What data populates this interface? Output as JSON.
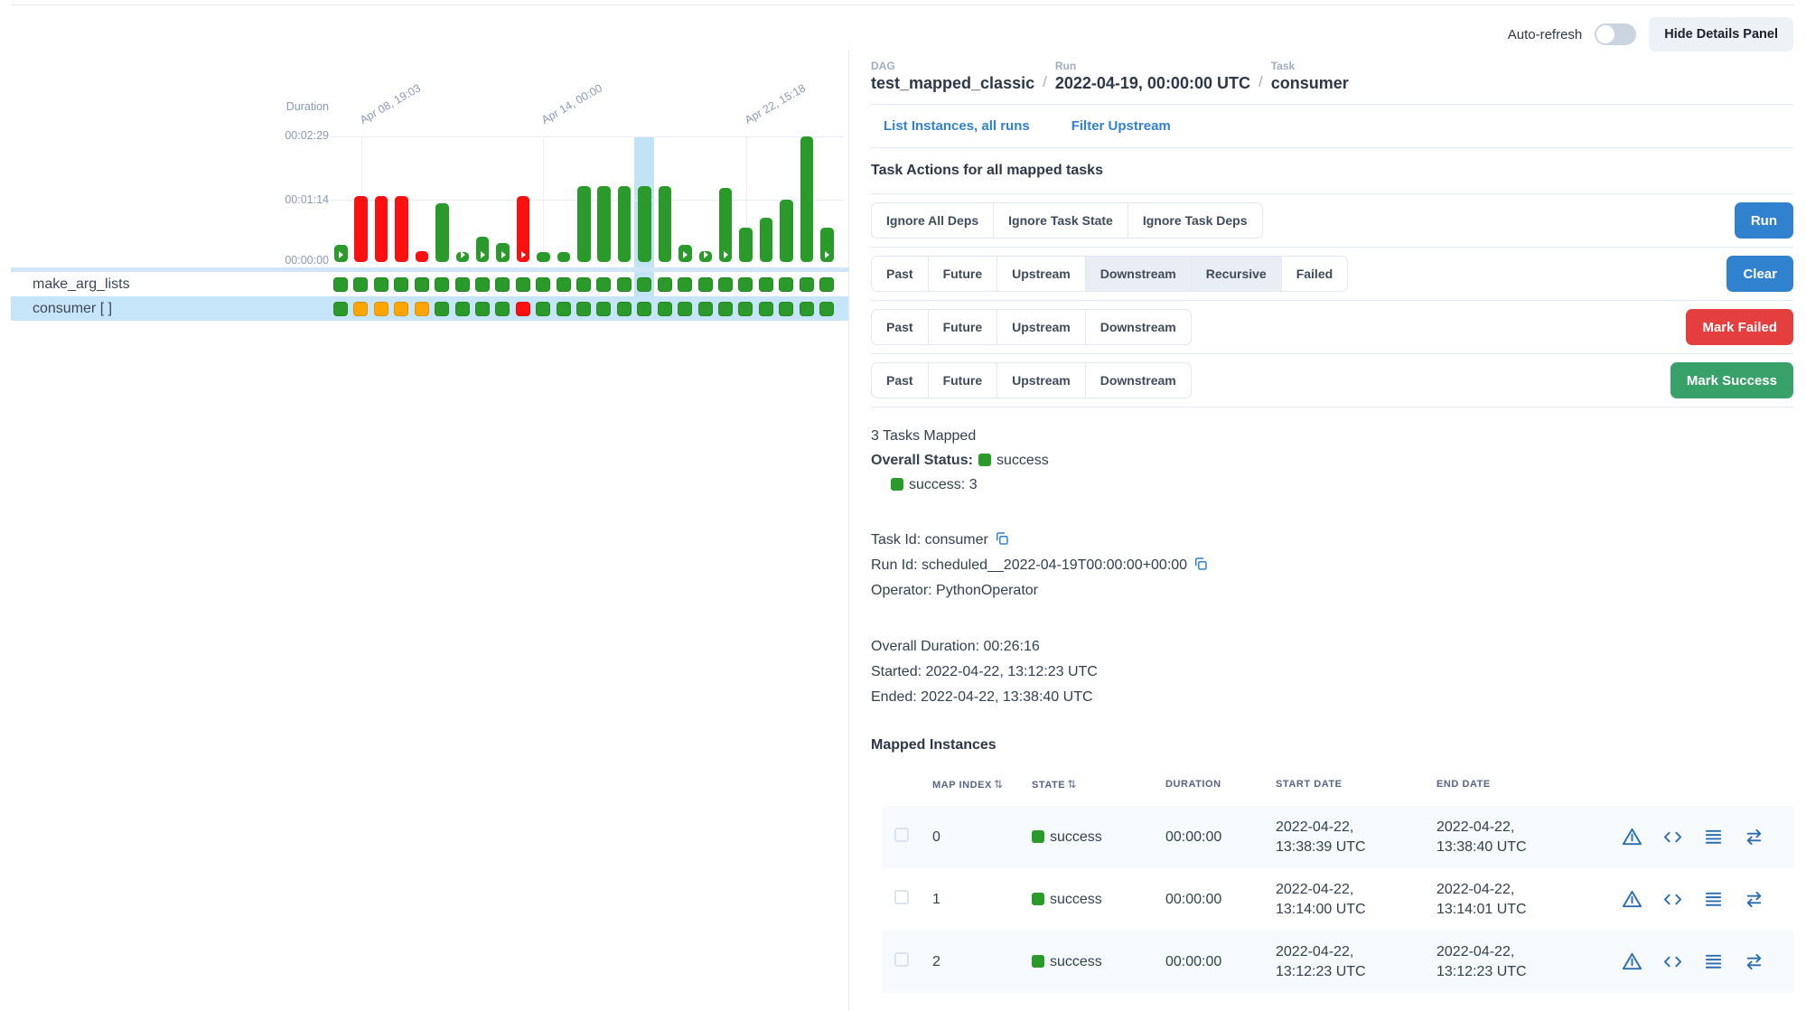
{
  "colors": {
    "accent_blue": "#3182ce",
    "success_green": "#2a9a2a",
    "failed_red": "#fb0f0f",
    "upstream_failed_orange": "#ffa500",
    "mark_failed_red": "#e53e3e",
    "mark_success_green": "#38a169",
    "selected_band_blue": "#c2e2f6",
    "selected_row_blue": "#c7e5f8"
  },
  "topbar": {
    "auto_refresh_label": "Auto-refresh",
    "auto_refresh_on": false,
    "hide_panel_label": "Hide Details Panel"
  },
  "breadcrumb": {
    "separator": "/",
    "dag_label": "DAG",
    "dag_value": "test_mapped_classic",
    "run_label": "Run",
    "run_value": "2022-04-19, 00:00:00 UTC",
    "task_label": "Task",
    "task_value": "consumer"
  },
  "links": {
    "list_instances": "List Instances, all runs",
    "filter_upstream": "Filter Upstream"
  },
  "task_actions": {
    "heading": "Task Actions for all mapped tasks",
    "rows": [
      {
        "buttons": [
          {
            "label": "Ignore All Deps",
            "selected": false
          },
          {
            "label": "Ignore Task State",
            "selected": false
          },
          {
            "label": "Ignore Task Deps",
            "selected": false
          }
        ],
        "action": {
          "label": "Run",
          "color": "#3182ce"
        }
      },
      {
        "buttons": [
          {
            "label": "Past",
            "selected": false
          },
          {
            "label": "Future",
            "selected": false
          },
          {
            "label": "Upstream",
            "selected": false
          },
          {
            "label": "Downstream",
            "selected": true
          },
          {
            "label": "Recursive",
            "selected": true
          },
          {
            "label": "Failed",
            "selected": false
          }
        ],
        "action": {
          "label": "Clear",
          "color": "#3182ce"
        }
      },
      {
        "buttons": [
          {
            "label": "Past",
            "selected": false
          },
          {
            "label": "Future",
            "selected": false
          },
          {
            "label": "Upstream",
            "selected": false
          },
          {
            "label": "Downstream",
            "selected": false
          }
        ],
        "action": {
          "label": "Mark Failed",
          "color": "#e53e3e"
        }
      },
      {
        "buttons": [
          {
            "label": "Past",
            "selected": false
          },
          {
            "label": "Future",
            "selected": false
          },
          {
            "label": "Upstream",
            "selected": false
          },
          {
            "label": "Downstream",
            "selected": false
          }
        ],
        "action": {
          "label": "Mark Success",
          "color": "#38a169"
        }
      }
    ]
  },
  "status": {
    "tasks_mapped": "3 Tasks Mapped",
    "overall_label": "Overall Status:",
    "overall_state": "success",
    "legend": [
      {
        "state": "success",
        "text": "success: 3"
      }
    ]
  },
  "details": {
    "task_id_label": "Task Id:",
    "task_id": "consumer",
    "run_id_label": "Run Id:",
    "run_id": "scheduled__2022-04-19T00:00:00+00:00",
    "operator_label": "Operator:",
    "operator": "PythonOperator",
    "overall_duration_label": "Overall Duration:",
    "overall_duration": "00:26:16",
    "started_label": "Started:",
    "started": "2022-04-22, 13:12:23 UTC",
    "ended_label": "Ended:",
    "ended": "2022-04-22, 13:38:40 UTC"
  },
  "mapped_instances": {
    "heading": "Mapped Instances",
    "columns": {
      "map_index": "Map Index",
      "state": "State",
      "duration": "Duration",
      "start_date": "Start Date",
      "end_date": "End Date"
    },
    "rows": [
      {
        "map_index": "0",
        "state": "success",
        "duration": "00:00:00",
        "start_date": "2022-04-22, 13:38:39 UTC",
        "end_date": "2022-04-22, 13:38:40 UTC"
      },
      {
        "map_index": "1",
        "state": "success",
        "duration": "00:00:00",
        "start_date": "2022-04-22, 13:14:00 UTC",
        "end_date": "2022-04-22, 13:14:01 UTC"
      },
      {
        "map_index": "2",
        "state": "success",
        "duration": "00:00:00",
        "start_date": "2022-04-22, 13:12:23 UTC",
        "end_date": "2022-04-22, 13:12:23 UTC"
      }
    ]
  },
  "chart_data": {
    "type": "bar",
    "title": "Duration",
    "ylabel": "Duration",
    "y_ticks": [
      "00:00:00",
      "00:01:14",
      "00:02:29"
    ],
    "ylim_seconds": [
      0,
      149
    ],
    "grid": true,
    "x_ticks": [
      {
        "label": "Apr 08, 19:03",
        "bar_index": 1
      },
      {
        "label": "Apr 14, 00:00",
        "bar_index": 10
      },
      {
        "label": "Apr 22, 15:18",
        "bar_index": 20
      }
    ],
    "selected_bar_index": 15,
    "bars": [
      {
        "duration_sec": 20,
        "state": "success",
        "manual": true
      },
      {
        "duration_sec": 78,
        "state": "failed",
        "manual": false
      },
      {
        "duration_sec": 78,
        "state": "failed",
        "manual": false
      },
      {
        "duration_sec": 78,
        "state": "failed",
        "manual": false
      },
      {
        "duration_sec": 13,
        "state": "failed",
        "manual": false
      },
      {
        "duration_sec": 70,
        "state": "success",
        "manual": false
      },
      {
        "duration_sec": 12,
        "state": "success",
        "manual": true
      },
      {
        "duration_sec": 30,
        "state": "success",
        "manual": true
      },
      {
        "duration_sec": 22,
        "state": "success",
        "manual": true
      },
      {
        "duration_sec": 78,
        "state": "failed",
        "manual": true
      },
      {
        "duration_sec": 12,
        "state": "success",
        "manual": false
      },
      {
        "duration_sec": 12,
        "state": "success",
        "manual": false
      },
      {
        "duration_sec": 90,
        "state": "success",
        "manual": false
      },
      {
        "duration_sec": 90,
        "state": "success",
        "manual": false
      },
      {
        "duration_sec": 90,
        "state": "success",
        "manual": false
      },
      {
        "duration_sec": 90,
        "state": "success",
        "manual": false
      },
      {
        "duration_sec": 90,
        "state": "success",
        "manual": false
      },
      {
        "duration_sec": 20,
        "state": "success",
        "manual": true
      },
      {
        "duration_sec": 13,
        "state": "success",
        "manual": true
      },
      {
        "duration_sec": 88,
        "state": "success",
        "manual": true
      },
      {
        "duration_sec": 41,
        "state": "success",
        "manual": false
      },
      {
        "duration_sec": 52,
        "state": "success",
        "manual": false
      },
      {
        "duration_sec": 74,
        "state": "success",
        "manual": false
      },
      {
        "duration_sec": 149,
        "state": "success",
        "manual": false
      },
      {
        "duration_sec": 41,
        "state": "success",
        "manual": true
      }
    ],
    "task_rows": [
      {
        "name": "make_arg_lists",
        "selected": false,
        "states": [
          "success",
          "success",
          "success",
          "success",
          "success",
          "success",
          "success",
          "success",
          "success",
          "success",
          "success",
          "success",
          "success",
          "success",
          "success",
          "success",
          "success",
          "success",
          "success",
          "success",
          "success",
          "success",
          "success",
          "success",
          "success"
        ]
      },
      {
        "name": "consumer [ ]",
        "selected": true,
        "states": [
          "success",
          "upstream_failed",
          "upstream_failed",
          "upstream_failed",
          "upstream_failed",
          "success",
          "success",
          "success",
          "success",
          "failed",
          "success",
          "success",
          "success",
          "success",
          "success",
          "success",
          "success",
          "success",
          "success",
          "success",
          "success",
          "success",
          "success",
          "success",
          "success"
        ]
      }
    ]
  }
}
